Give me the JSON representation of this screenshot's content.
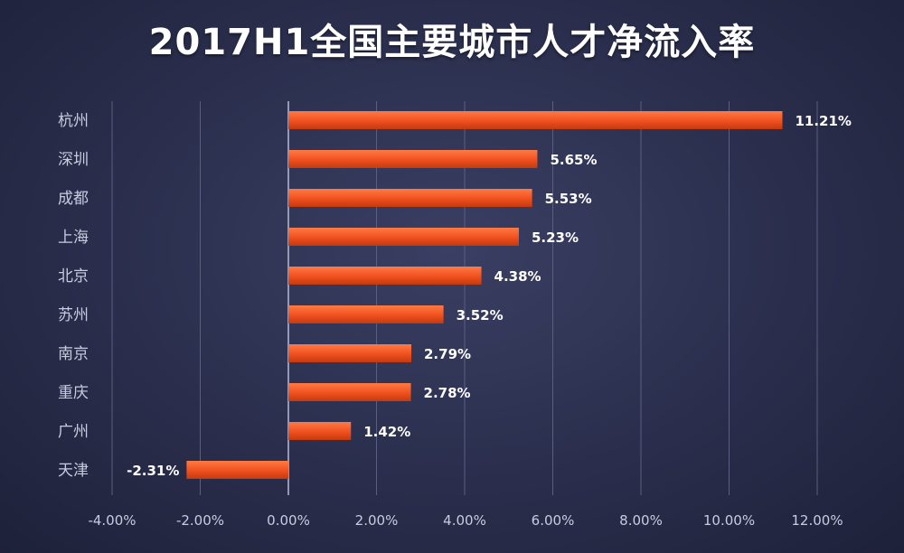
{
  "colors": {
    "bar": "#f0501e",
    "bar_highlight": "#ff7a45",
    "grid": "#5a5e80",
    "zero_axis": "#b8bbd6"
  },
  "chart_data": {
    "type": "bar",
    "orientation": "horizontal",
    "title": "2017H1全国主要城市人才净流入率",
    "categories": [
      "杭州",
      "深圳",
      "成都",
      "上海",
      "北京",
      "苏州",
      "南京",
      "重庆",
      "广州",
      "天津"
    ],
    "values": [
      11.21,
      5.65,
      5.53,
      5.23,
      4.38,
      3.52,
      2.79,
      2.78,
      1.42,
      -2.31
    ],
    "value_labels": [
      "11.21%",
      "5.65%",
      "5.53%",
      "5.23%",
      "4.38%",
      "3.52%",
      "2.79%",
      "2.78%",
      "1.42%",
      "-2.31%"
    ],
    "xlim": [
      -4,
      12
    ],
    "x_ticks": [
      -4,
      -2,
      0,
      2,
      4,
      6,
      8,
      10,
      12
    ],
    "x_tick_labels": [
      "-4.00%",
      "-2.00%",
      "0.00%",
      "2.00%",
      "4.00%",
      "6.00%",
      "8.00%",
      "10.00%",
      "12.00%"
    ],
    "grid": true,
    "legend": false
  }
}
